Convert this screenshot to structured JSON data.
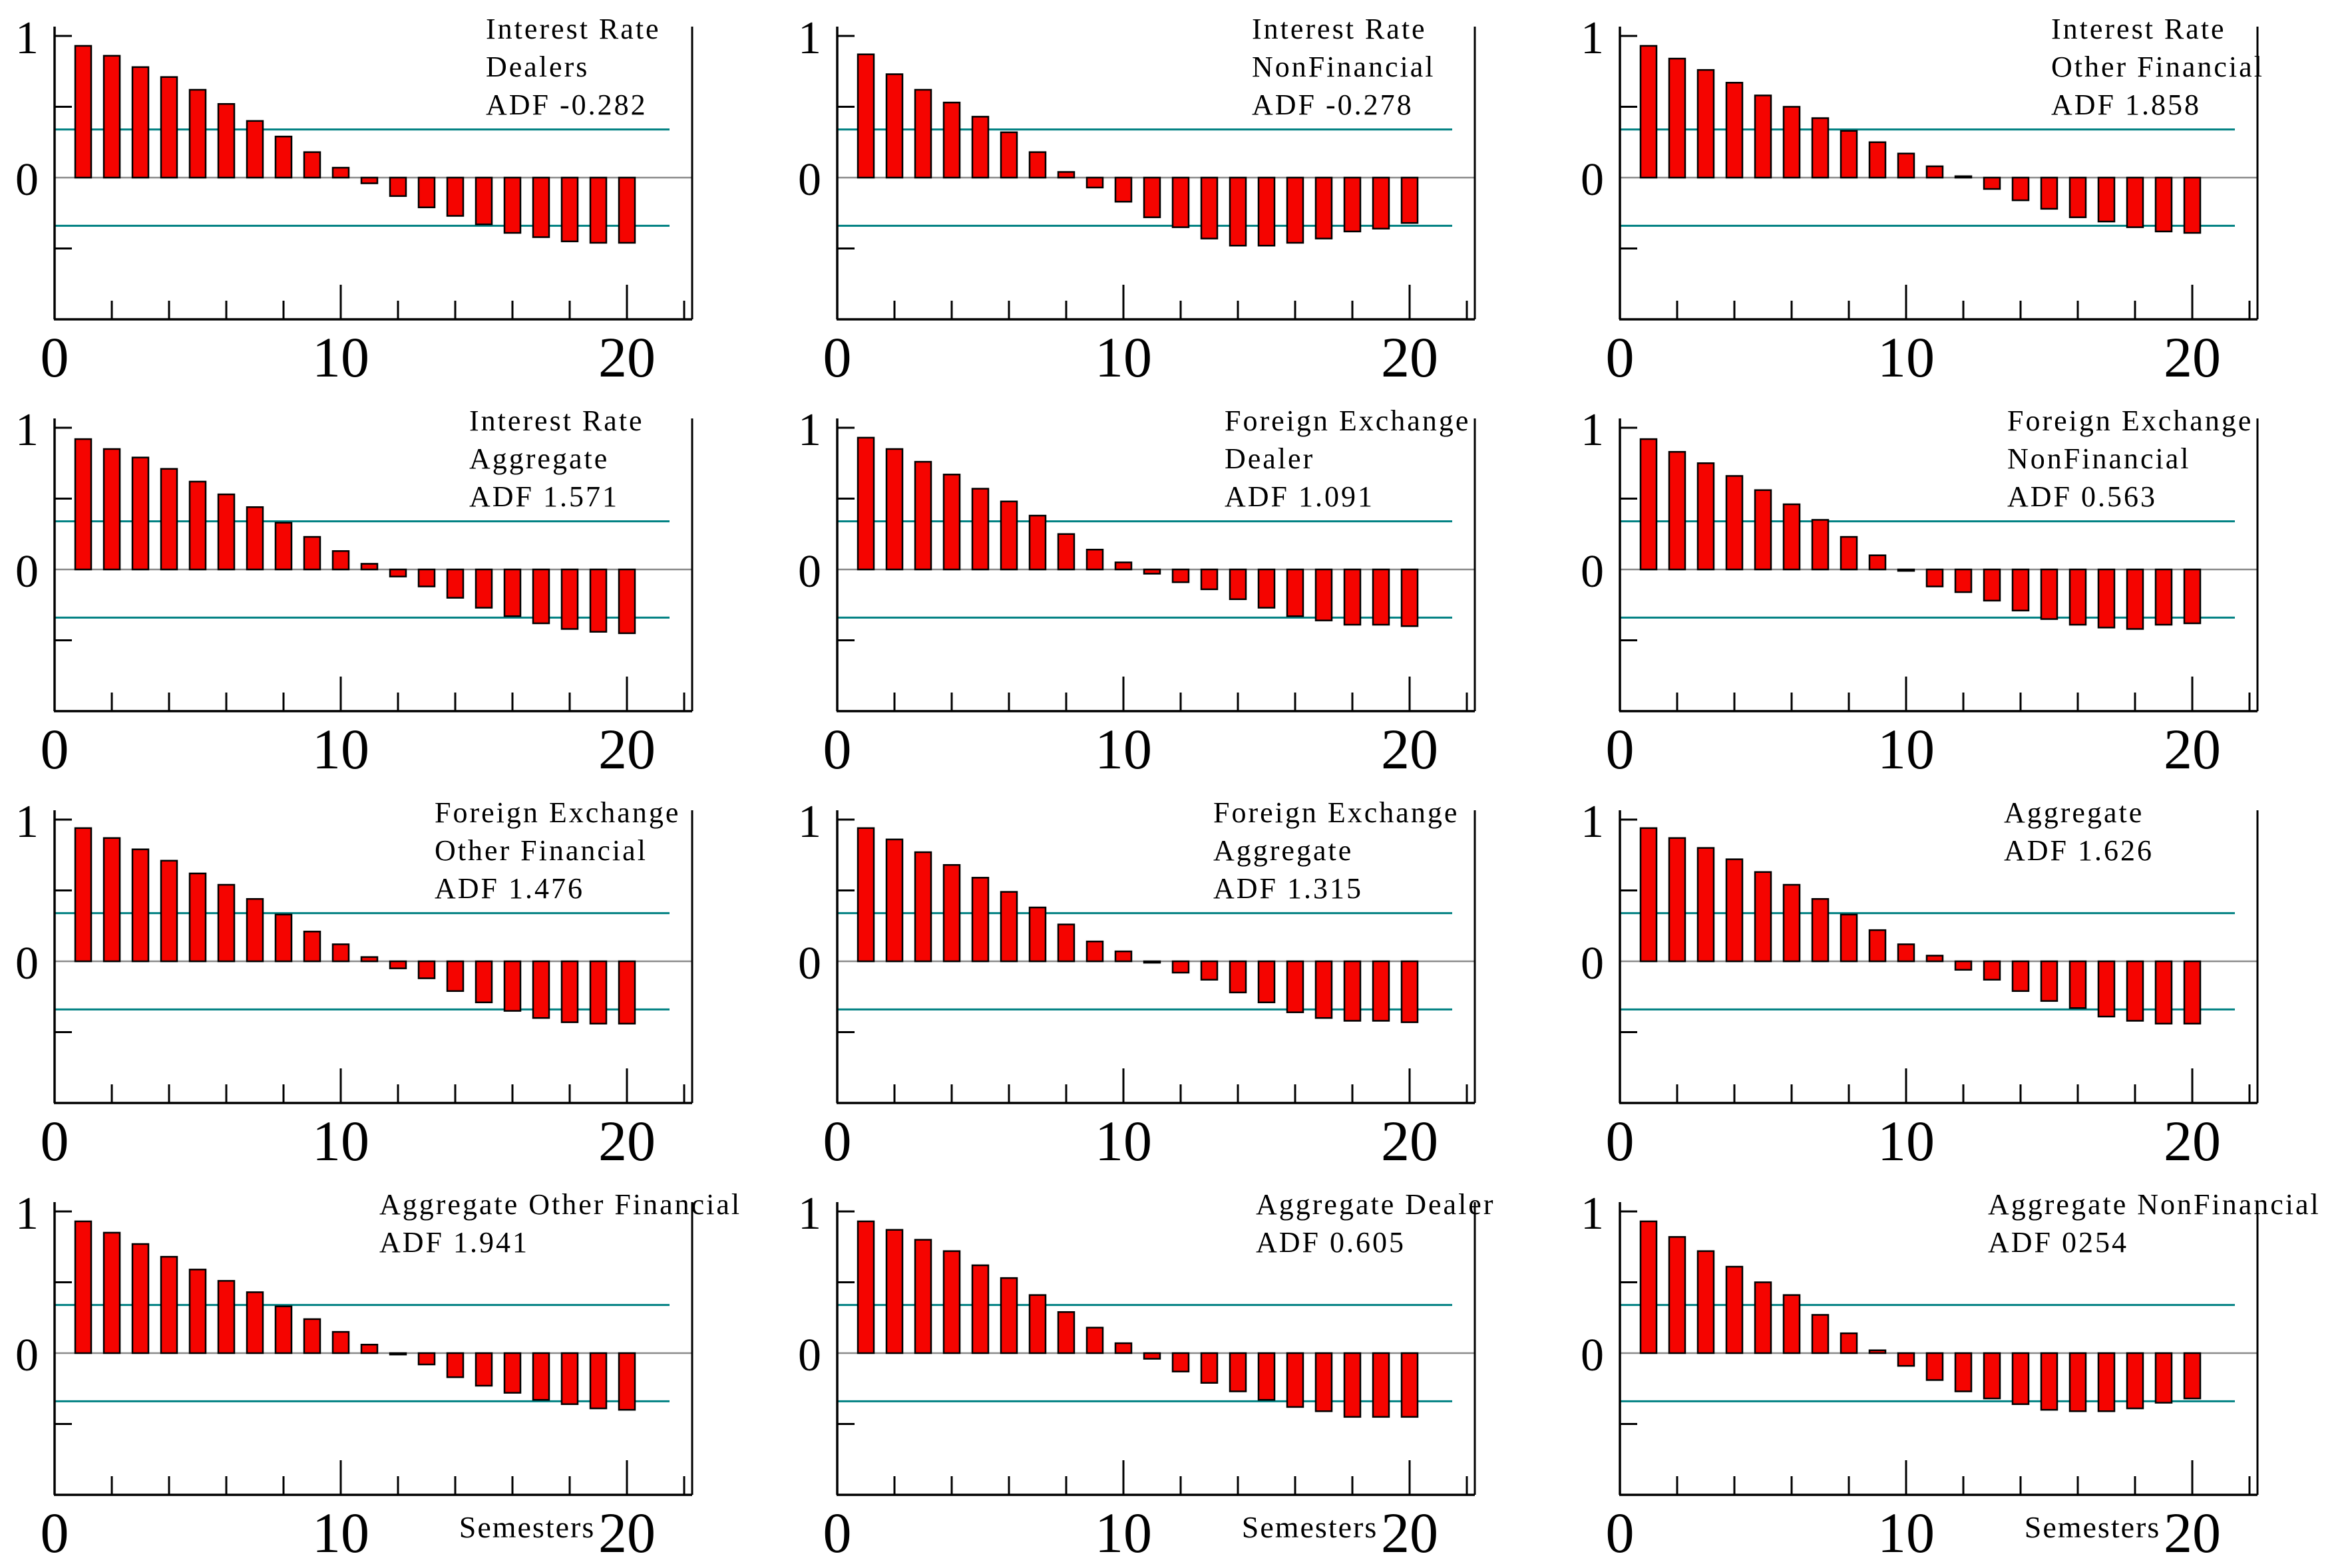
{
  "figure": {
    "description_visible_text_only": true,
    "x_axis_label": "Semesters",
    "x_tick_labels": [
      "0",
      "10",
      "20"
    ],
    "y_tick_labels": [
      "1",
      "0"
    ],
    "x_lags": [
      1,
      2,
      3,
      4,
      5,
      6,
      7,
      8,
      9,
      10,
      11,
      12,
      13,
      14,
      15,
      16,
      17,
      18,
      19,
      20
    ]
  },
  "colors": {
    "bar_fill": "#f50400",
    "bar_stroke": "#000000",
    "confidence_line": "#008182",
    "zero_line": "#8a8a8a",
    "axis": "#000000",
    "text": "#000000",
    "background": "#ffffff"
  },
  "confidence_band": {
    "upper": 0.34,
    "lower": -0.34
  },
  "chart_data": [
    {
      "type": "bar",
      "title_lines": [
        "Interest Rate",
        "Dealers"
      ],
      "adf_label": "ADF -0.282",
      "x": [
        1,
        2,
        3,
        4,
        5,
        6,
        7,
        8,
        9,
        10,
        11,
        12,
        13,
        14,
        15,
        16,
        17,
        18,
        19,
        20
      ],
      "values": [
        0.93,
        0.86,
        0.78,
        0.71,
        0.62,
        0.52,
        0.4,
        0.29,
        0.18,
        0.07,
        -0.04,
        -0.13,
        -0.21,
        -0.27,
        -0.33,
        -0.39,
        -0.42,
        -0.45,
        -0.46,
        -0.46
      ],
      "ylim": [
        -1.0,
        1.05
      ],
      "xlim": [
        0,
        23
      ],
      "band_upper": 0.34,
      "band_lower": -0.34,
      "show_xlabel": false
    },
    {
      "type": "bar",
      "title_lines": [
        "Interest Rate",
        "NonFinancial"
      ],
      "adf_label": "ADF -0.278",
      "x": [
        1,
        2,
        3,
        4,
        5,
        6,
        7,
        8,
        9,
        10,
        11,
        12,
        13,
        14,
        15,
        16,
        17,
        18,
        19,
        20
      ],
      "values": [
        0.87,
        0.73,
        0.62,
        0.53,
        0.43,
        0.32,
        0.18,
        0.04,
        -0.07,
        -0.17,
        -0.28,
        -0.35,
        -0.43,
        -0.48,
        -0.48,
        -0.46,
        -0.43,
        -0.38,
        -0.36,
        -0.32
      ],
      "ylim": [
        -1.0,
        1.05
      ],
      "xlim": [
        0,
        23
      ],
      "band_upper": 0.34,
      "band_lower": -0.34,
      "show_xlabel": false
    },
    {
      "type": "bar",
      "title_lines": [
        "Interest Rate",
        "Other Financial"
      ],
      "adf_label": "ADF 1.858",
      "x": [
        1,
        2,
        3,
        4,
        5,
        6,
        7,
        8,
        9,
        10,
        11,
        12,
        13,
        14,
        15,
        16,
        17,
        18,
        19,
        20
      ],
      "values": [
        0.93,
        0.84,
        0.76,
        0.67,
        0.58,
        0.5,
        0.42,
        0.33,
        0.25,
        0.17,
        0.08,
        0.01,
        -0.08,
        -0.16,
        -0.22,
        -0.28,
        -0.31,
        -0.35,
        -0.38,
        -0.39
      ],
      "ylim": [
        -1.0,
        1.05
      ],
      "xlim": [
        0,
        23
      ],
      "band_upper": 0.34,
      "band_lower": -0.34,
      "show_xlabel": false
    },
    {
      "type": "bar",
      "title_lines": [
        "Interest Rate",
        "Aggregate"
      ],
      "adf_label": "ADF 1.571",
      "x": [
        1,
        2,
        3,
        4,
        5,
        6,
        7,
        8,
        9,
        10,
        11,
        12,
        13,
        14,
        15,
        16,
        17,
        18,
        19,
        20
      ],
      "values": [
        0.92,
        0.85,
        0.79,
        0.71,
        0.62,
        0.53,
        0.44,
        0.33,
        0.23,
        0.13,
        0.04,
        -0.05,
        -0.12,
        -0.2,
        -0.27,
        -0.33,
        -0.38,
        -0.42,
        -0.44,
        -0.45
      ],
      "ylim": [
        -1.0,
        1.05
      ],
      "xlim": [
        0,
        23
      ],
      "band_upper": 0.34,
      "band_lower": -0.34,
      "show_xlabel": false
    },
    {
      "type": "bar",
      "title_lines": [
        "Foreign Exchange",
        "Dealer"
      ],
      "adf_label": "ADF 1.091",
      "x": [
        1,
        2,
        3,
        4,
        5,
        6,
        7,
        8,
        9,
        10,
        11,
        12,
        13,
        14,
        15,
        16,
        17,
        18,
        19,
        20
      ],
      "values": [
        0.93,
        0.85,
        0.76,
        0.67,
        0.57,
        0.48,
        0.38,
        0.25,
        0.14,
        0.05,
        -0.03,
        -0.09,
        -0.14,
        -0.21,
        -0.27,
        -0.33,
        -0.36,
        -0.39,
        -0.39,
        -0.4
      ],
      "ylim": [
        -1.0,
        1.05
      ],
      "xlim": [
        0,
        23
      ],
      "band_upper": 0.34,
      "band_lower": -0.34,
      "show_xlabel": false
    },
    {
      "type": "bar",
      "title_lines": [
        "Foreign Exchange",
        "NonFinancial"
      ],
      "adf_label": "ADF 0.563",
      "x": [
        1,
        2,
        3,
        4,
        5,
        6,
        7,
        8,
        9,
        10,
        11,
        12,
        13,
        14,
        15,
        16,
        17,
        18,
        19,
        20
      ],
      "values": [
        0.92,
        0.83,
        0.75,
        0.66,
        0.56,
        0.46,
        0.35,
        0.23,
        0.1,
        -0.01,
        -0.12,
        -0.16,
        -0.22,
        -0.29,
        -0.35,
        -0.39,
        -0.41,
        -0.42,
        -0.39,
        -0.38
      ],
      "ylim": [
        -1.0,
        1.05
      ],
      "xlim": [
        0,
        23
      ],
      "band_upper": 0.34,
      "band_lower": -0.34,
      "show_xlabel": false
    },
    {
      "type": "bar",
      "title_lines": [
        "Foreign Exchange",
        "Other Financial"
      ],
      "adf_label": "ADF 1.476",
      "x": [
        1,
        2,
        3,
        4,
        5,
        6,
        7,
        8,
        9,
        10,
        11,
        12,
        13,
        14,
        15,
        16,
        17,
        18,
        19,
        20
      ],
      "values": [
        0.94,
        0.87,
        0.79,
        0.71,
        0.62,
        0.54,
        0.44,
        0.33,
        0.21,
        0.12,
        0.03,
        -0.05,
        -0.12,
        -0.21,
        -0.29,
        -0.35,
        -0.4,
        -0.43,
        -0.44,
        -0.44
      ],
      "ylim": [
        -1.0,
        1.05
      ],
      "xlim": [
        0,
        23
      ],
      "band_upper": 0.34,
      "band_lower": -0.34,
      "show_xlabel": false
    },
    {
      "type": "bar",
      "title_lines": [
        "Foreign Exchange",
        "Aggregate"
      ],
      "adf_label": "ADF 1.315",
      "x": [
        1,
        2,
        3,
        4,
        5,
        6,
        7,
        8,
        9,
        10,
        11,
        12,
        13,
        14,
        15,
        16,
        17,
        18,
        19,
        20
      ],
      "values": [
        0.94,
        0.86,
        0.77,
        0.68,
        0.59,
        0.49,
        0.38,
        0.26,
        0.14,
        0.07,
        -0.01,
        -0.08,
        -0.13,
        -0.22,
        -0.29,
        -0.36,
        -0.4,
        -0.42,
        -0.42,
        -0.43
      ],
      "ylim": [
        -1.0,
        1.05
      ],
      "xlim": [
        0,
        23
      ],
      "band_upper": 0.34,
      "band_lower": -0.34,
      "show_xlabel": false
    },
    {
      "type": "bar",
      "title_lines": [
        "Aggregate"
      ],
      "adf_label": "ADF 1.626",
      "x": [
        1,
        2,
        3,
        4,
        5,
        6,
        7,
        8,
        9,
        10,
        11,
        12,
        13,
        14,
        15,
        16,
        17,
        18,
        19,
        20
      ],
      "values": [
        0.94,
        0.87,
        0.8,
        0.72,
        0.63,
        0.54,
        0.44,
        0.33,
        0.22,
        0.12,
        0.04,
        -0.06,
        -0.13,
        -0.21,
        -0.28,
        -0.33,
        -0.39,
        -0.42,
        -0.44,
        -0.44
      ],
      "ylim": [
        -1.0,
        1.05
      ],
      "xlim": [
        0,
        23
      ],
      "band_upper": 0.34,
      "band_lower": -0.34,
      "show_xlabel": false
    },
    {
      "type": "bar",
      "title_lines": [
        "Aggregate Other Financial"
      ],
      "adf_label": "ADF 1.941",
      "x": [
        1,
        2,
        3,
        4,
        5,
        6,
        7,
        8,
        9,
        10,
        11,
        12,
        13,
        14,
        15,
        16,
        17,
        18,
        19,
        20
      ],
      "values": [
        0.93,
        0.85,
        0.77,
        0.68,
        0.59,
        0.51,
        0.43,
        0.33,
        0.24,
        0.15,
        0.06,
        -0.01,
        -0.08,
        -0.17,
        -0.23,
        -0.28,
        -0.33,
        -0.36,
        -0.39,
        -0.4
      ],
      "ylim": [
        -1.0,
        1.05
      ],
      "xlim": [
        0,
        23
      ],
      "band_upper": 0.34,
      "band_lower": -0.34,
      "show_xlabel": true
    },
    {
      "type": "bar",
      "title_lines": [
        "Aggregate Dealer"
      ],
      "adf_label": "ADF 0.605",
      "x": [
        1,
        2,
        3,
        4,
        5,
        6,
        7,
        8,
        9,
        10,
        11,
        12,
        13,
        14,
        15,
        16,
        17,
        18,
        19,
        20
      ],
      "values": [
        0.93,
        0.87,
        0.8,
        0.72,
        0.62,
        0.53,
        0.41,
        0.29,
        0.18,
        0.07,
        -0.04,
        -0.13,
        -0.21,
        -0.27,
        -0.33,
        -0.38,
        -0.41,
        -0.45,
        -0.45,
        -0.45
      ],
      "ylim": [
        -1.0,
        1.05
      ],
      "xlim": [
        0,
        23
      ],
      "band_upper": 0.34,
      "band_lower": -0.34,
      "show_xlabel": true
    },
    {
      "type": "bar",
      "title_lines": [
        "Aggregate NonFinancial"
      ],
      "adf_label": "ADF 0254",
      "x": [
        1,
        2,
        3,
        4,
        5,
        6,
        7,
        8,
        9,
        10,
        11,
        12,
        13,
        14,
        15,
        16,
        17,
        18,
        19,
        20
      ],
      "values": [
        0.93,
        0.82,
        0.72,
        0.61,
        0.5,
        0.41,
        0.27,
        0.14,
        0.02,
        -0.09,
        -0.19,
        -0.27,
        -0.32,
        -0.36,
        -0.4,
        -0.41,
        -0.41,
        -0.39,
        -0.35,
        -0.32
      ],
      "ylim": [
        -1.0,
        1.05
      ],
      "xlim": [
        0,
        23
      ],
      "band_upper": 0.34,
      "band_lower": -0.34,
      "show_xlabel": true
    }
  ]
}
